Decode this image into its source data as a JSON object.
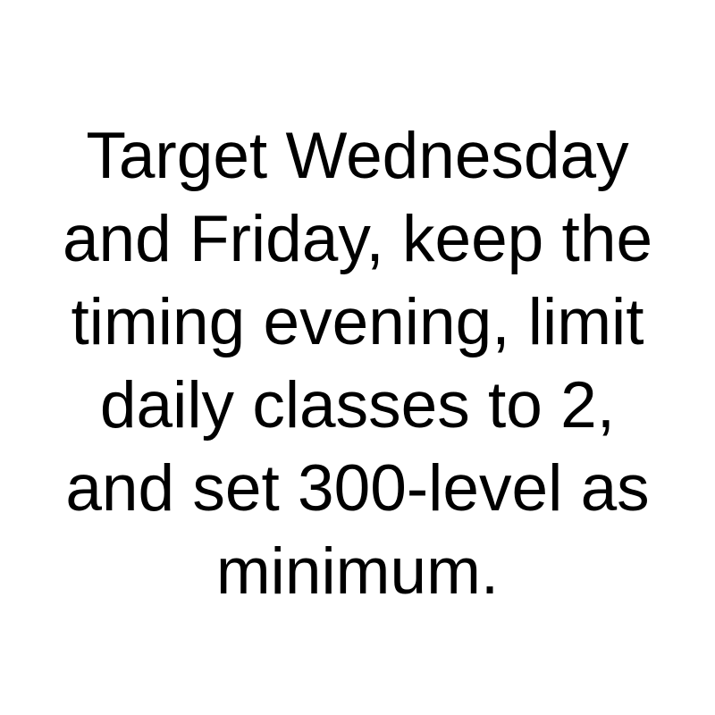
{
  "message": {
    "lines": [
      "Target Wednesday",
      "and Friday, keep the",
      "timing evening, limit",
      "daily classes to 2,",
      "and set 300-level as",
      "minimum."
    ]
  },
  "colors": {
    "background": "#ffffff",
    "text": "#000000"
  }
}
